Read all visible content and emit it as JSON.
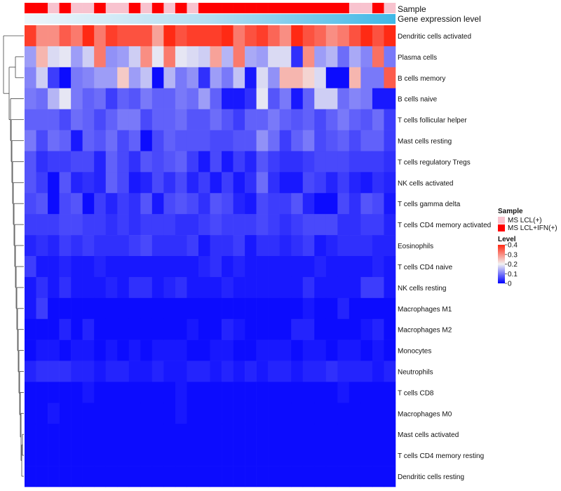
{
  "chart_data": {
    "type": "heatmap",
    "annotations": {
      "sample_label": "Sample",
      "expression_label": "Gene expression level",
      "sample_groups": [
        "LCL+IFN",
        "LCL+IFN",
        "LCL",
        "LCL+IFN",
        "LCL",
        "LCL",
        "LCL+IFN",
        "LCL",
        "LCL",
        "LCL+IFN",
        "LCL",
        "LCL+IFN",
        "LCL",
        "LCL+IFN",
        "LCL",
        "LCL+IFN",
        "LCL+IFN",
        "LCL+IFN",
        "LCL+IFN",
        "LCL+IFN",
        "LCL+IFN",
        "LCL+IFN",
        "LCL+IFN",
        "LCL+IFN",
        "LCL+IFN",
        "LCL+IFN",
        "LCL+IFN",
        "LCL+IFN",
        "LCL",
        "LCL",
        "LCL+IFN",
        "LCL"
      ]
    },
    "legend": {
      "sample_title": "Sample",
      "sample_entries": [
        {
          "key": "LCL",
          "label": "MS LCL(+)",
          "color": "#f8c3cf"
        },
        {
          "key": "LCL+IFN",
          "label": "MS LCL+IFN(+)",
          "color": "#ff0000"
        }
      ],
      "level_title": "Level",
      "level_ticks": [
        "0.4",
        "0.3",
        "0.2",
        "0.1",
        "0"
      ],
      "level_tick_values": [
        0.4,
        0.3,
        0.2,
        0.1,
        0.0
      ]
    },
    "color_scale": {
      "min": 0,
      "mid": 0.2,
      "max": 0.4,
      "low": "#0000ff",
      "mid_color": "#f2f2f2",
      "high": "#ff2a14"
    },
    "rows": [
      "Dendritic cells activated",
      "Plasma cells",
      "B cells memory",
      "B cells naive",
      "T cells follicular helper",
      "Mast cells resting",
      "T cells regulatory  Tregs",
      "NK cells activated",
      "T cells gamma delta",
      "T cells CD4 memory activated",
      "Eosinophils",
      "T cells CD4 naive",
      "NK cells resting",
      "Macrophages M1",
      "Macrophages M2",
      "Monocytes",
      "Neutrophils",
      "T cells CD8",
      "Macrophages M0",
      "Mast cells activated",
      "T cells CD4 memory resting",
      "Dendritic cells resting"
    ],
    "values": [
      [
        0.38,
        0.3,
        0.3,
        0.35,
        0.32,
        0.4,
        0.32,
        0.38,
        0.36,
        0.36,
        0.36,
        0.28,
        0.4,
        0.36,
        0.38,
        0.38,
        0.38,
        0.4,
        0.32,
        0.36,
        0.38,
        0.34,
        0.3,
        0.4,
        0.36,
        0.34,
        0.3,
        0.32,
        0.36,
        0.4,
        0.36,
        0.4
      ],
      [
        0.13,
        0.26,
        0.18,
        0.19,
        0.13,
        0.17,
        0.32,
        0.12,
        0.13,
        0.17,
        0.3,
        0.19,
        0.32,
        0.19,
        0.18,
        0.17,
        0.28,
        0.15,
        0.32,
        0.14,
        0.13,
        0.18,
        0.18,
        0.04,
        0.3,
        0.13,
        0.15,
        0.09,
        0.14,
        0.11,
        0.33,
        0.1
      ],
      [
        0.11,
        0.17,
        0.05,
        0.01,
        0.1,
        0.11,
        0.13,
        0.13,
        0.24,
        0.13,
        0.16,
        0.01,
        0.15,
        0.1,
        0.12,
        0.04,
        0.13,
        0.1,
        0.16,
        0.02,
        0.18,
        0.12,
        0.26,
        0.26,
        0.23,
        0.18,
        0.01,
        0.01,
        0.26,
        0.1,
        0.1,
        0.35
      ],
      [
        0.1,
        0.09,
        0.15,
        0.19,
        0.1,
        0.08,
        0.09,
        0.05,
        0.08,
        0.07,
        0.1,
        0.08,
        0.08,
        0.1,
        0.09,
        0.13,
        0.08,
        0.02,
        0.02,
        0.04,
        0.19,
        0.07,
        0.1,
        0.02,
        0.08,
        0.17,
        0.17,
        0.09,
        0.11,
        0.1,
        0.02,
        0.02
      ],
      [
        0.08,
        0.08,
        0.08,
        0.06,
        0.09,
        0.08,
        0.06,
        0.08,
        0.1,
        0.1,
        0.06,
        0.08,
        0.08,
        0.09,
        0.07,
        0.07,
        0.09,
        0.07,
        0.05,
        0.08,
        0.08,
        0.1,
        0.08,
        0.07,
        0.08,
        0.06,
        0.08,
        0.1,
        0.08,
        0.07,
        0.09,
        0.05
      ],
      [
        0.1,
        0.06,
        0.09,
        0.08,
        0.02,
        0.08,
        0.07,
        0.09,
        0.06,
        0.08,
        0.01,
        0.06,
        0.08,
        0.07,
        0.07,
        0.07,
        0.06,
        0.06,
        0.07,
        0.07,
        0.12,
        0.09,
        0.05,
        0.08,
        0.1,
        0.06,
        0.07,
        0.08,
        0.06,
        0.08,
        0.08,
        0.05
      ],
      [
        0.07,
        0.04,
        0.05,
        0.05,
        0.06,
        0.06,
        0.03,
        0.08,
        0.06,
        0.04,
        0.07,
        0.06,
        0.07,
        0.08,
        0.05,
        0.02,
        0.06,
        0.02,
        0.05,
        0.03,
        0.07,
        0.05,
        0.04,
        0.04,
        0.05,
        0.06,
        0.06,
        0.06,
        0.05,
        0.05,
        0.05,
        0.04
      ],
      [
        0.07,
        0.05,
        0.01,
        0.07,
        0.03,
        0.04,
        0.03,
        0.08,
        0.06,
        0.02,
        0.03,
        0.06,
        0.04,
        0.06,
        0.03,
        0.05,
        0.02,
        0.05,
        0.02,
        0.04,
        0.09,
        0.04,
        0.02,
        0.02,
        0.06,
        0.05,
        0.03,
        0.05,
        0.03,
        0.02,
        0.04,
        0.03
      ],
      [
        0.06,
        0.07,
        0.01,
        0.06,
        0.07,
        0.01,
        0.05,
        0.03,
        0.05,
        0.04,
        0.07,
        0.02,
        0.06,
        0.07,
        0.06,
        0.04,
        0.07,
        0.06,
        0.03,
        0.02,
        0.06,
        0.05,
        0.05,
        0.07,
        0.03,
        0.01,
        0.01,
        0.06,
        0.04,
        0.07,
        0.06,
        0.02
      ],
      [
        0.05,
        0.05,
        0.05,
        0.06,
        0.06,
        0.05,
        0.05,
        0.04,
        0.05,
        0.04,
        0.05,
        0.05,
        0.05,
        0.04,
        0.04,
        0.05,
        0.06,
        0.05,
        0.05,
        0.05,
        0.06,
        0.05,
        0.04,
        0.05,
        0.06,
        0.06,
        0.06,
        0.04,
        0.04,
        0.05,
        0.05,
        0.03
      ],
      [
        0.03,
        0.04,
        0.03,
        0.05,
        0.04,
        0.05,
        0.04,
        0.04,
        0.04,
        0.05,
        0.06,
        0.04,
        0.04,
        0.04,
        0.05,
        0.02,
        0.04,
        0.04,
        0.05,
        0.02,
        0.04,
        0.04,
        0.03,
        0.04,
        0.05,
        0.02,
        0.03,
        0.04,
        0.04,
        0.04,
        0.03,
        0.03
      ],
      [
        0.05,
        0.02,
        0.02,
        0.03,
        0.02,
        0.02,
        0.03,
        0.02,
        0.02,
        0.02,
        0.02,
        0.02,
        0.02,
        0.02,
        0.02,
        0.03,
        0.04,
        0.02,
        0.03,
        0.02,
        0.02,
        0.02,
        0.02,
        0.02,
        0.02,
        0.03,
        0.02,
        0.02,
        0.02,
        0.02,
        0.03,
        0.02
      ],
      [
        0.02,
        0.04,
        0.02,
        0.04,
        0.02,
        0.02,
        0.02,
        0.03,
        0.02,
        0.04,
        0.04,
        0.02,
        0.03,
        0.04,
        0.02,
        0.02,
        0.02,
        0.03,
        0.02,
        0.02,
        0.02,
        0.02,
        0.02,
        0.02,
        0.04,
        0.02,
        0.02,
        0.02,
        0.02,
        0.05,
        0.05,
        0.02
      ],
      [
        0.02,
        0.05,
        0.01,
        0.01,
        0.01,
        0.01,
        0.01,
        0.01,
        0.01,
        0.01,
        0.01,
        0.01,
        0.01,
        0.01,
        0.01,
        0.01,
        0.01,
        0.01,
        0.01,
        0.01,
        0.01,
        0.01,
        0.01,
        0.01,
        0.02,
        0.01,
        0.01,
        0.03,
        0.01,
        0.01,
        0.01,
        0.01
      ],
      [
        0.01,
        0.01,
        0.01,
        0.03,
        0.01,
        0.03,
        0.01,
        0.01,
        0.01,
        0.01,
        0.01,
        0.01,
        0.01,
        0.01,
        0.02,
        0.01,
        0.01,
        0.03,
        0.02,
        0.01,
        0.01,
        0.01,
        0.01,
        0.03,
        0.03,
        0.01,
        0.01,
        0.01,
        0.01,
        0.02,
        0.03,
        0.01
      ],
      [
        0.01,
        0.02,
        0.02,
        0.01,
        0.02,
        0.02,
        0.01,
        0.02,
        0.01,
        0.02,
        0.01,
        0.02,
        0.02,
        0.02,
        0.01,
        0.01,
        0.02,
        0.02,
        0.01,
        0.01,
        0.02,
        0.02,
        0.02,
        0.01,
        0.02,
        0.02,
        0.01,
        0.02,
        0.02,
        0.01,
        0.02,
        0.01
      ],
      [
        0.03,
        0.04,
        0.04,
        0.04,
        0.03,
        0.03,
        0.02,
        0.03,
        0.03,
        0.02,
        0.02,
        0.03,
        0.02,
        0.02,
        0.03,
        0.03,
        0.02,
        0.03,
        0.02,
        0.03,
        0.02,
        0.03,
        0.03,
        0.02,
        0.03,
        0.03,
        0.04,
        0.03,
        0.03,
        0.03,
        0.02,
        0.03
      ],
      [
        0.01,
        0.01,
        0.01,
        0.01,
        0.01,
        0.02,
        0.01,
        0.01,
        0.01,
        0.01,
        0.01,
        0.01,
        0.01,
        0.02,
        0.01,
        0.01,
        0.01,
        0.01,
        0.01,
        0.01,
        0.01,
        0.01,
        0.01,
        0.01,
        0.01,
        0.01,
        0.01,
        0.02,
        0.01,
        0.01,
        0.01,
        0.01
      ],
      [
        0.01,
        0.01,
        0.02,
        0.01,
        0.01,
        0.01,
        0.01,
        0.01,
        0.01,
        0.01,
        0.01,
        0.01,
        0.01,
        0.02,
        0.01,
        0.01,
        0.01,
        0.01,
        0.01,
        0.01,
        0.01,
        0.01,
        0.01,
        0.01,
        0.01,
        0.01,
        0.01,
        0.01,
        0.01,
        0.01,
        0.01,
        0.01
      ],
      [
        0.01,
        0.01,
        0.01,
        0.01,
        0.01,
        0.01,
        0.01,
        0.01,
        0.01,
        0.01,
        0.01,
        0.01,
        0.01,
        0.01,
        0.01,
        0.01,
        0.01,
        0.01,
        0.01,
        0.01,
        0.01,
        0.01,
        0.01,
        0.01,
        0.01,
        0.01,
        0.01,
        0.01,
        0.01,
        0.01,
        0.01,
        0.01
      ],
      [
        0.01,
        0.01,
        0.01,
        0.01,
        0.01,
        0.01,
        0.01,
        0.01,
        0.01,
        0.01,
        0.01,
        0.01,
        0.01,
        0.01,
        0.01,
        0.01,
        0.01,
        0.01,
        0.01,
        0.01,
        0.01,
        0.01,
        0.01,
        0.01,
        0.01,
        0.01,
        0.01,
        0.01,
        0.01,
        0.01,
        0.01,
        0.01
      ],
      [
        0.01,
        0.01,
        0.01,
        0.01,
        0.01,
        0.01,
        0.01,
        0.01,
        0.01,
        0.01,
        0.01,
        0.01,
        0.01,
        0.01,
        0.01,
        0.01,
        0.01,
        0.01,
        0.01,
        0.01,
        0.01,
        0.01,
        0.01,
        0.01,
        0.01,
        0.01,
        0.01,
        0.01,
        0.01,
        0.01,
        0.01,
        0.01
      ]
    ]
  }
}
